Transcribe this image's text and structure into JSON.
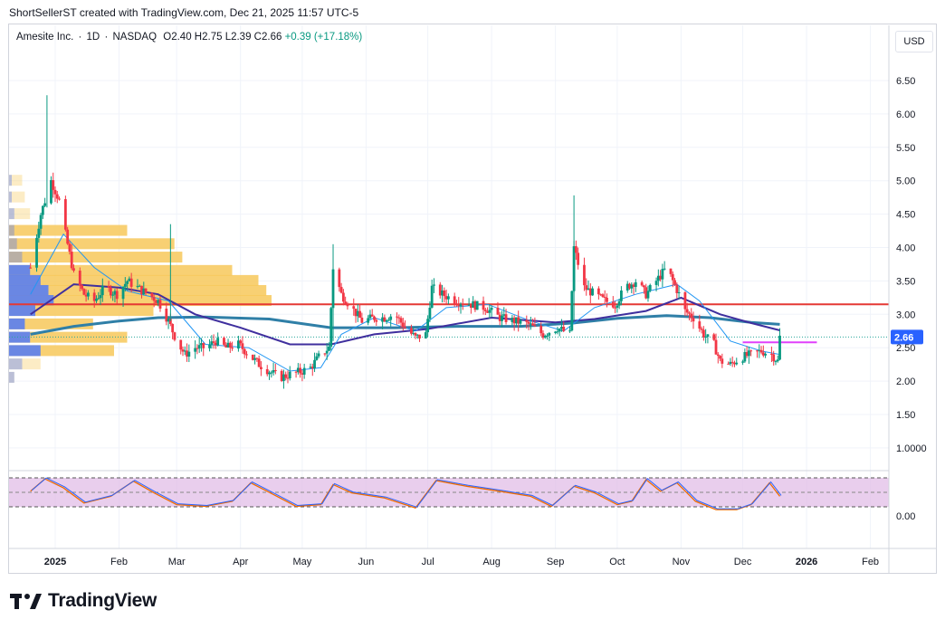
{
  "header": {
    "text": "ShortSellerST created with TradingView.com, Dec 21, 2025 11:57 UTC-5"
  },
  "legend": {
    "symbol": "Amesite Inc.",
    "interval": "1D",
    "exchange": "NASDAQ",
    "open": "O2.40",
    "high": "H2.75",
    "low": "L2.39",
    "close": "C2.66",
    "change": "+0.39 (+17.18%)",
    "change_color": "#089981"
  },
  "currency": "USD",
  "brand": {
    "name": "TradingView"
  },
  "colors": {
    "up": "#089981",
    "down": "#f23645",
    "sma_fast": "#2196f3",
    "sma_mid": "#3f2f9e",
    "sma_slow": "#2f7fa7",
    "resistance": "#e53935",
    "target": "#e040fb",
    "rsi_fill": "#e1bee7",
    "vp_up": "#f7c85a",
    "vp_down": "#5a7ef0",
    "last_price_bg": "#2962ff"
  },
  "chart_data": {
    "type": "candlestick",
    "y_axis": {
      "ticks": [
        "6.50",
        "6.00",
        "5.50",
        "5.00",
        "4.50",
        "4.00",
        "3.50",
        "3.00",
        "2.50",
        "2.00",
        "1.50",
        "1.0000"
      ],
      "range": [
        0.8,
        7.1
      ]
    },
    "x_axis": {
      "ticks": [
        "2025",
        "Feb",
        "Mar",
        "Apr",
        "May",
        "Jun",
        "Jul",
        "Aug",
        "Sep",
        "Oct",
        "Nov",
        "Dec",
        "2026",
        "Feb"
      ]
    },
    "last_price": "2.66",
    "resistance_level": 3.15,
    "target_level": 2.58,
    "price_path": [
      [
        "2024-12-20",
        3.7
      ],
      [
        "2024-12-25",
        4.5
      ],
      [
        "2024-12-30",
        5.0
      ],
      [
        "2025-01-03",
        4.7
      ],
      [
        "2025-01-06",
        4.2
      ],
      [
        "2025-01-10",
        3.6
      ],
      [
        "2025-01-15",
        3.3
      ],
      [
        "2025-01-20",
        3.2
      ],
      [
        "2025-01-25",
        3.4
      ],
      [
        "2025-01-31",
        3.3
      ],
      [
        "2025-02-05",
        3.5
      ],
      [
        "2025-02-10",
        3.4
      ],
      [
        "2025-02-15",
        3.3
      ],
      [
        "2025-02-20",
        3.2
      ],
      [
        "2025-02-25",
        2.9
      ],
      [
        "2025-03-01",
        2.6
      ],
      [
        "2025-03-05",
        2.4
      ],
      [
        "2025-03-10",
        2.5
      ],
      [
        "2025-03-15",
        2.5
      ],
      [
        "2025-03-20",
        2.6
      ],
      [
        "2025-03-25",
        2.5
      ],
      [
        "2025-03-31",
        2.55
      ],
      [
        "2025-04-05",
        2.4
      ],
      [
        "2025-04-10",
        2.25
      ],
      [
        "2025-04-15",
        2.15
      ],
      [
        "2025-04-20",
        2.05
      ],
      [
        "2025-04-25",
        2.1
      ],
      [
        "2025-05-01",
        2.15
      ],
      [
        "2025-05-05",
        2.2
      ],
      [
        "2025-05-10",
        2.4
      ],
      [
        "2025-05-14",
        2.5
      ],
      [
        "2025-05-16",
        3.7
      ],
      [
        "2025-05-20",
        3.3
      ],
      [
        "2025-05-25",
        3.1
      ],
      [
        "2025-05-30",
        2.9
      ],
      [
        "2025-06-05",
        2.95
      ],
      [
        "2025-06-10",
        2.95
      ],
      [
        "2025-06-15",
        3.0
      ],
      [
        "2025-06-20",
        2.8
      ],
      [
        "2025-06-25",
        2.65
      ],
      [
        "2025-06-30",
        2.7
      ],
      [
        "2025-07-03",
        3.4
      ],
      [
        "2025-07-08",
        3.3
      ],
      [
        "2025-07-15",
        3.2
      ],
      [
        "2025-07-22",
        3.15
      ],
      [
        "2025-07-29",
        3.1
      ],
      [
        "2025-08-05",
        2.95
      ],
      [
        "2025-08-12",
        2.9
      ],
      [
        "2025-08-19",
        2.85
      ],
      [
        "2025-08-26",
        2.7
      ],
      [
        "2025-09-02",
        2.8
      ],
      [
        "2025-09-08",
        2.7
      ],
      [
        "2025-09-10",
        4.0
      ],
      [
        "2025-09-15",
        3.4
      ],
      [
        "2025-09-20",
        3.3
      ],
      [
        "2025-09-25",
        3.2
      ],
      [
        "2025-09-30",
        3.15
      ],
      [
        "2025-10-05",
        3.4
      ],
      [
        "2025-10-10",
        3.5
      ],
      [
        "2025-10-15",
        3.3
      ],
      [
        "2025-10-20",
        3.5
      ],
      [
        "2025-10-25",
        3.7
      ],
      [
        "2025-10-31",
        3.3
      ],
      [
        "2025-11-03",
        3.05
      ],
      [
        "2025-11-07",
        2.95
      ],
      [
        "2025-11-12",
        2.7
      ],
      [
        "2025-11-17",
        2.55
      ],
      [
        "2025-11-20",
        2.3
      ],
      [
        "2025-11-25",
        2.25
      ],
      [
        "2025-11-30",
        2.35
      ],
      [
        "2025-12-05",
        2.4
      ],
      [
        "2025-12-10",
        2.45
      ],
      [
        "2025-12-15",
        2.4
      ],
      [
        "2025-12-18",
        2.3
      ],
      [
        "2025-12-19",
        2.66
      ]
    ],
    "sma_fast_path": [
      [
        "2024-12-20",
        3.3
      ],
      [
        "2025-01-05",
        4.2
      ],
      [
        "2025-01-20",
        3.7
      ],
      [
        "2025-02-05",
        3.35
      ],
      [
        "2025-02-25",
        3.2
      ],
      [
        "2025-03-15",
        2.55
      ],
      [
        "2025-04-05",
        2.5
      ],
      [
        "2025-04-25",
        2.15
      ],
      [
        "2025-05-10",
        2.2
      ],
      [
        "2025-05-20",
        2.7
      ],
      [
        "2025-06-05",
        2.95
      ],
      [
        "2025-06-25",
        2.75
      ],
      [
        "2025-07-10",
        3.1
      ],
      [
        "2025-07-30",
        3.15
      ],
      [
        "2025-08-20",
        2.9
      ],
      [
        "2025-09-05",
        2.75
      ],
      [
        "2025-09-20",
        3.1
      ],
      [
        "2025-10-10",
        3.3
      ],
      [
        "2025-10-30",
        3.45
      ],
      [
        "2025-11-10",
        3.2
      ],
      [
        "2025-11-25",
        2.6
      ],
      [
        "2025-12-10",
        2.45
      ],
      [
        "2025-12-19",
        2.4
      ]
    ],
    "sma_mid_path": [
      [
        "2024-12-20",
        3.0
      ],
      [
        "2025-01-10",
        3.45
      ],
      [
        "2025-02-01",
        3.4
      ],
      [
        "2025-02-20",
        3.3
      ],
      [
        "2025-03-10",
        3.0
      ],
      [
        "2025-04-01",
        2.8
      ],
      [
        "2025-04-25",
        2.55
      ],
      [
        "2025-05-15",
        2.55
      ],
      [
        "2025-06-05",
        2.7
      ],
      [
        "2025-07-01",
        2.78
      ],
      [
        "2025-08-01",
        2.95
      ],
      [
        "2025-09-01",
        2.88
      ],
      [
        "2025-09-20",
        2.93
      ],
      [
        "2025-10-15",
        3.05
      ],
      [
        "2025-11-01",
        3.25
      ],
      [
        "2025-11-20",
        3.0
      ],
      [
        "2025-12-05",
        2.87
      ],
      [
        "2025-12-19",
        2.76
      ]
    ],
    "sma_slow_path": [
      [
        "2024-12-20",
        2.7
      ],
      [
        "2025-01-10",
        2.82
      ],
      [
        "2025-02-01",
        2.9
      ],
      [
        "2025-02-20",
        2.95
      ],
      [
        "2025-03-15",
        2.96
      ],
      [
        "2025-04-15",
        2.93
      ],
      [
        "2025-05-15",
        2.8
      ],
      [
        "2025-06-15",
        2.8
      ],
      [
        "2025-07-15",
        2.82
      ],
      [
        "2025-08-15",
        2.82
      ],
      [
        "2025-09-10",
        2.87
      ],
      [
        "2025-10-01",
        2.94
      ],
      [
        "2025-10-25",
        2.98
      ],
      [
        "2025-11-15",
        2.95
      ],
      [
        "2025-12-05",
        2.88
      ],
      [
        "2025-12-19",
        2.85
      ]
    ],
    "rsi_path": [
      [
        "2024-12-20",
        0.6
      ],
      [
        "2024-12-27",
        0.97
      ],
      [
        "2025-01-05",
        0.7
      ],
      [
        "2025-01-15",
        0.25
      ],
      [
        "2025-01-28",
        0.45
      ],
      [
        "2025-02-08",
        0.9
      ],
      [
        "2025-02-18",
        0.55
      ],
      [
        "2025-03-01",
        0.2
      ],
      [
        "2025-03-15",
        0.15
      ],
      [
        "2025-03-28",
        0.3
      ],
      [
        "2025-04-06",
        0.85
      ],
      [
        "2025-04-14",
        0.6
      ],
      [
        "2025-04-28",
        0.15
      ],
      [
        "2025-05-10",
        0.2
      ],
      [
        "2025-05-16",
        0.8
      ],
      [
        "2025-05-25",
        0.55
      ],
      [
        "2025-06-10",
        0.4
      ],
      [
        "2025-06-25",
        0.1
      ],
      [
        "2025-07-05",
        0.92
      ],
      [
        "2025-07-20",
        0.75
      ],
      [
        "2025-08-05",
        0.6
      ],
      [
        "2025-08-20",
        0.45
      ],
      [
        "2025-08-30",
        0.15
      ],
      [
        "2025-09-10",
        0.75
      ],
      [
        "2025-09-20",
        0.55
      ],
      [
        "2025-10-01",
        0.2
      ],
      [
        "2025-10-08",
        0.3
      ],
      [
        "2025-10-15",
        0.95
      ],
      [
        "2025-10-22",
        0.6
      ],
      [
        "2025-10-30",
        0.85
      ],
      [
        "2025-11-08",
        0.3
      ],
      [
        "2025-11-18",
        0.05
      ],
      [
        "2025-11-28",
        0.05
      ],
      [
        "2025-12-05",
        0.2
      ],
      [
        "2025-12-14",
        0.85
      ],
      [
        "2025-12-19",
        0.45
      ]
    ],
    "rsi_axis": {
      "tick": "0.00"
    },
    "volume_profile_rows": [
      {
        "price": 5.0,
        "up": 0.05,
        "down": 0.01
      },
      {
        "price": 4.75,
        "up": 0.06,
        "down": 0.01
      },
      {
        "price": 4.5,
        "up": 0.08,
        "down": 0.02
      },
      {
        "price": 4.25,
        "up": 0.45,
        "down": 0.02
      },
      {
        "price": 4.05,
        "up": 0.63,
        "down": 0.03
      },
      {
        "price": 3.85,
        "up": 0.66,
        "down": 0.05
      },
      {
        "price": 3.65,
        "up": 0.85,
        "down": 0.08
      },
      {
        "price": 3.5,
        "up": 0.95,
        "down": 0.12
      },
      {
        "price": 3.35,
        "up": 0.98,
        "down": 0.15
      },
      {
        "price": 3.2,
        "up": 1.0,
        "down": 0.17
      },
      {
        "price": 3.05,
        "up": 0.55,
        "down": 0.1
      },
      {
        "price": 2.85,
        "up": 0.32,
        "down": 0.06
      },
      {
        "price": 2.65,
        "up": 0.45,
        "down": 0.08
      },
      {
        "price": 2.45,
        "up": 0.4,
        "down": 0.12
      },
      {
        "price": 2.25,
        "up": 0.12,
        "down": 0.05
      },
      {
        "price": 2.05,
        "up": 0.02,
        "down": 0.02
      }
    ]
  }
}
